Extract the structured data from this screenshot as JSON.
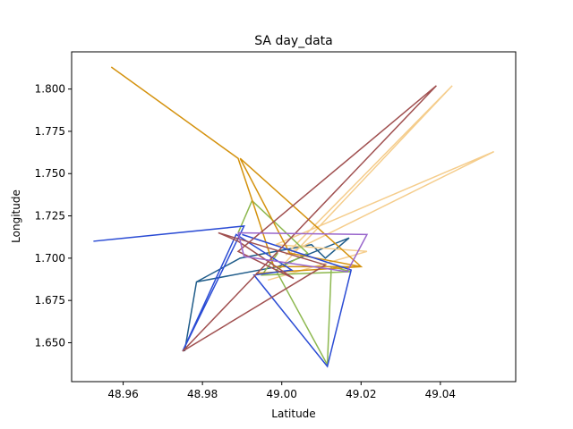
{
  "chart_data": {
    "type": "line",
    "title": "SA day_data",
    "xlabel": "Latitude",
    "ylabel": "Longitude",
    "xlim": [
      48.947,
      49.059
    ],
    "ylim": [
      1.627,
      1.822
    ],
    "xticks": [
      48.96,
      48.98,
      49.0,
      49.02,
      49.04
    ],
    "xtick_labels": [
      "48.96",
      "48.98",
      "49.00",
      "49.02",
      "49.04"
    ],
    "yticks": [
      1.65,
      1.675,
      1.7,
      1.725,
      1.75,
      1.775,
      1.8
    ],
    "ytick_labels": [
      "1.650",
      "1.675",
      "1.700",
      "1.725",
      "1.750",
      "1.775",
      "1.800"
    ],
    "grid": false,
    "series": [
      {
        "color": "#1f5c8a",
        "x": [
          48.9785,
          48.9895,
          49.0075,
          49.011,
          49.017,
          48.999,
          48.9785,
          48.9755
        ],
        "y": [
          1.686,
          1.7,
          1.708,
          1.7,
          1.712,
          1.695,
          1.686,
          1.645
        ]
      },
      {
        "color": "#f5cd8c",
        "x": [
          48.9995,
          49.043,
          49.001,
          49.0535,
          48.9985,
          49.0215,
          48.9965
        ],
        "y": [
          1.694,
          1.802,
          1.702,
          1.763,
          1.708,
          1.704,
          1.687
        ]
      },
      {
        "color": "#8db84f",
        "x": [
          48.989,
          48.9925,
          49.0065,
          48.9985,
          49.0115,
          49.0125,
          49.0175,
          48.995,
          48.999
        ],
        "y": [
          1.715,
          1.734,
          1.703,
          1.693,
          1.637,
          1.695,
          1.692,
          1.69,
          1.703
        ]
      },
      {
        "color": "#d4920e",
        "x": [
          48.957,
          48.989,
          48.993,
          48.998,
          49.02,
          48.9895,
          49.002,
          49.02,
          48.9935
        ],
        "y": [
          1.813,
          1.759,
          1.731,
          1.695,
          1.695,
          1.759,
          1.703,
          1.695,
          1.691
        ]
      },
      {
        "color": "#2a4bd4",
        "x": [
          48.9525,
          48.9905,
          48.975,
          48.9885,
          49.0025,
          48.993,
          49.0115,
          49.0175,
          48.99
        ],
        "y": [
          1.71,
          1.719,
          1.645,
          1.714,
          1.693,
          1.69,
          1.636,
          1.693,
          1.714
        ]
      },
      {
        "color": "#a05050",
        "x": [
          49.039,
          48.975,
          49.011,
          48.984,
          48.989,
          49.003,
          48.989,
          49.039
        ],
        "y": [
          1.802,
          1.645,
          1.696,
          1.715,
          1.71,
          1.688,
          1.704,
          1.802
        ]
      },
      {
        "color": "#9966cc",
        "x": [
          48.989,
          49.0215,
          49.0165,
          48.9905,
          48.989
        ],
        "y": [
          1.715,
          1.714,
          1.692,
          1.701,
          1.715
        ]
      }
    ]
  }
}
